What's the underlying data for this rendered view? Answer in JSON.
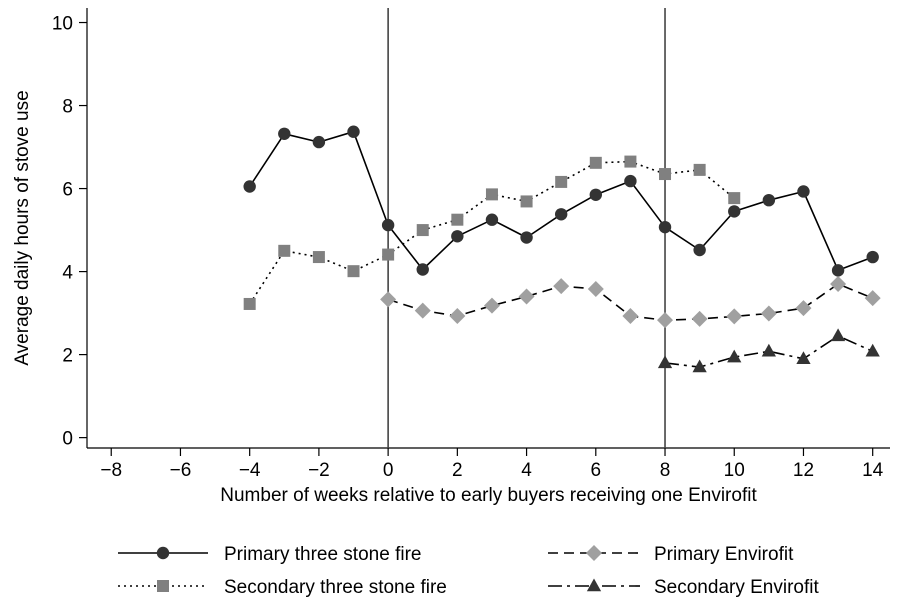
{
  "chart_data": {
    "type": "line",
    "xlabel": "Number of weeks relative to early buyers receiving one Envirofit",
    "ylabel": "Average daily hours of stove use",
    "xlim": [
      -8.7,
      14.5
    ],
    "ylim": [
      -0.25,
      10.35
    ],
    "x_ticks": [
      -8,
      -6,
      -4,
      -2,
      0,
      2,
      4,
      6,
      8,
      10,
      12,
      14
    ],
    "y_ticks": [
      0,
      2,
      4,
      6,
      8,
      10
    ],
    "vertical_lines": [
      0,
      8
    ],
    "grid": false,
    "legend_position": "bottom",
    "series": [
      {
        "name": "Primary three stone fire",
        "color": "#333333",
        "marker": "circle",
        "line_style": "solid",
        "points": [
          [
            -4,
            6.05
          ],
          [
            -3,
            7.32
          ],
          [
            -2,
            7.12
          ],
          [
            -1,
            7.37
          ],
          [
            0,
            5.12
          ],
          [
            1,
            4.05
          ],
          [
            2,
            4.85
          ],
          [
            3,
            5.25
          ],
          [
            4,
            4.82
          ],
          [
            5,
            5.38
          ],
          [
            6,
            5.85
          ],
          [
            7,
            6.18
          ],
          [
            8,
            5.07
          ],
          [
            9,
            4.52
          ],
          [
            10,
            5.45
          ],
          [
            11,
            5.72
          ],
          [
            12,
            5.93
          ],
          [
            13,
            4.03
          ],
          [
            14,
            4.35
          ]
        ]
      },
      {
        "name": "Secondary three stone fire",
        "color": "#808080",
        "marker": "square",
        "line_style": "dotted",
        "points": [
          [
            -4,
            3.22
          ],
          [
            -3,
            4.5
          ],
          [
            -2,
            4.35
          ],
          [
            -1,
            4.01
          ],
          [
            0,
            4.41
          ],
          [
            1,
            5.0
          ],
          [
            2,
            5.25
          ],
          [
            3,
            5.86
          ],
          [
            4,
            5.69
          ],
          [
            5,
            6.16
          ],
          [
            6,
            6.62
          ],
          [
            7,
            6.65
          ],
          [
            8,
            6.35
          ],
          [
            9,
            6.45
          ],
          [
            10,
            5.77
          ]
        ]
      },
      {
        "name": "Primary Envirofit",
        "color": "#a0a0a0",
        "marker": "diamond",
        "line_style": "dashed",
        "points": [
          [
            0,
            3.33
          ],
          [
            1,
            3.06
          ],
          [
            2,
            2.93
          ],
          [
            3,
            3.18
          ],
          [
            4,
            3.4
          ],
          [
            5,
            3.65
          ],
          [
            6,
            3.58
          ],
          [
            7,
            2.93
          ],
          [
            8,
            2.83
          ],
          [
            9,
            2.86
          ],
          [
            10,
            2.92
          ],
          [
            11,
            2.99
          ],
          [
            12,
            3.12
          ],
          [
            13,
            3.7
          ],
          [
            14,
            3.36
          ]
        ]
      },
      {
        "name": "Secondary Envirofit",
        "color": "#333333",
        "marker": "triangle",
        "line_style": "dashdot",
        "points": [
          [
            8,
            1.8
          ],
          [
            9,
            1.7
          ],
          [
            10,
            1.94
          ],
          [
            11,
            2.08
          ],
          [
            12,
            1.9
          ],
          [
            13,
            2.45
          ],
          [
            14,
            2.08
          ]
        ]
      }
    ]
  }
}
